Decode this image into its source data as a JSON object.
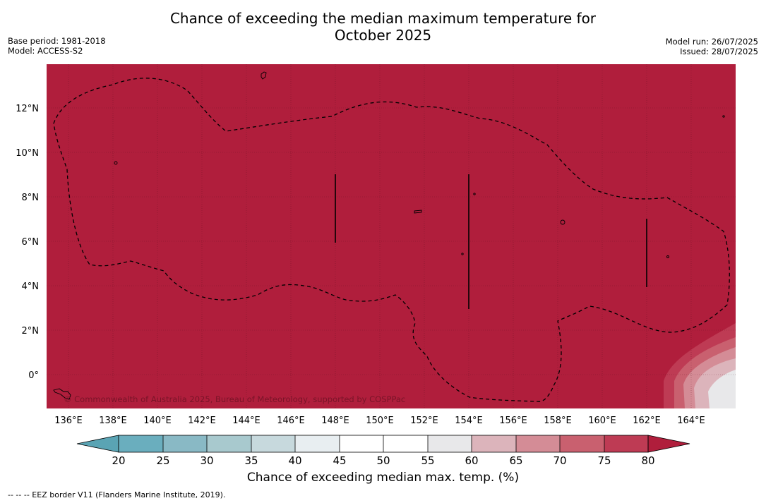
{
  "title_line1": "Chance of exceeding the median maximum temperature for",
  "title_line2": "October 2025",
  "base_period": "Base period: 1981-2018",
  "model": "Model: ACCESS-S2",
  "model_run": "Model run: 26/07/2025",
  "issued": "Issued: 28/07/2025",
  "copyright": "© Commonwealth of Australia 2025, Bureau of Meteorology, supported by COSPPac",
  "colors": {
    "background_class": "#b01e3c",
    "colorbar": [
      "#5aa4b4",
      "#6aaebe",
      "#89b9c5",
      "#a8c9ce",
      "#c7d9dd",
      "#e8eef1",
      "#ffffff",
      "#ffffff",
      "#e8e8ea",
      "#dcb4bb",
      "#d48c96",
      "#c9606f",
      "#be3b54",
      "#b01e3c"
    ]
  },
  "map": {
    "lon_labels": [
      "136°E",
      "138°E",
      "140°E",
      "142°E",
      "144°E",
      "146°E",
      "148°E",
      "150°E",
      "152°E",
      "154°E",
      "156°E",
      "158°E",
      "160°E",
      "162°E",
      "164°E"
    ],
    "lat_labels": [
      "12°N",
      "10°N",
      "8°N",
      "6°N",
      "4°N",
      "2°N",
      "0°"
    ],
    "dominant_category_percent": "75-80",
    "feature": "EEZ border"
  },
  "colorbar": {
    "ticks": [
      "20",
      "25",
      "30",
      "35",
      "40",
      "45",
      "50",
      "55",
      "60",
      "65",
      "70",
      "75",
      "80"
    ],
    "title": "Chance of exceeding median max. temp. (%)"
  },
  "footnote": "--  --  -- EEZ border V11 (Flanders Marine Institute, 2019)."
}
